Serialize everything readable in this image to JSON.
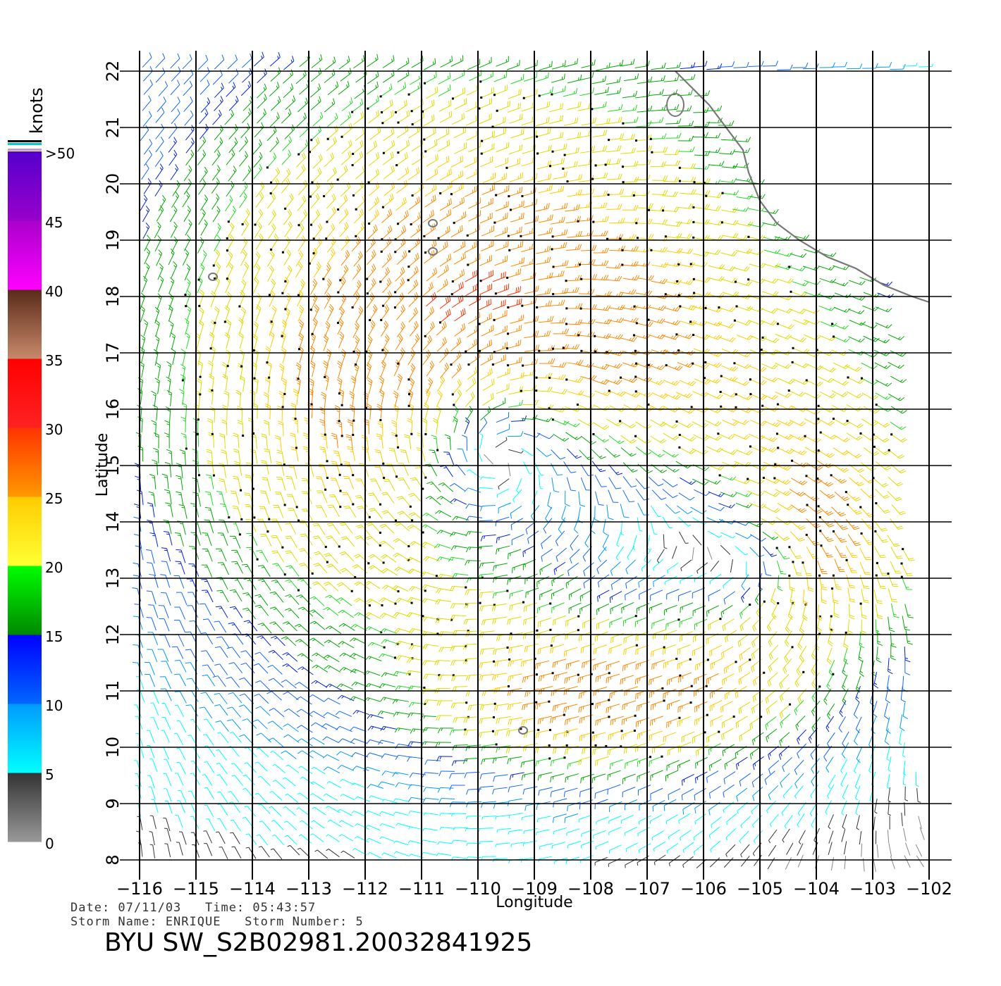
{
  "map": {
    "type": "scatterometer-wind-barbs",
    "lon_range": [
      -116,
      -102
    ],
    "lat_range": [
      8,
      22
    ],
    "x_label": "Longitude",
    "y_label": "Latitude",
    "lon_ticks": [
      -116,
      -115,
      -114,
      -113,
      -112,
      -111,
      -110,
      -109,
      -108,
      -107,
      -106,
      -105,
      -104,
      -103,
      -102
    ],
    "lat_ticks": [
      8,
      9,
      10,
      11,
      12,
      13,
      14,
      15,
      16,
      17,
      18,
      19,
      20,
      21,
      22
    ],
    "storm_center": {
      "lon": -109.8,
      "lat": 15.4
    },
    "secondary_center": {
      "lon": -104.9,
      "lat": 13.3
    },
    "coastline": [
      [
        -106.5,
        22.0
      ],
      [
        -106.2,
        21.7
      ],
      [
        -105.9,
        21.4
      ],
      [
        -105.6,
        21.0
      ],
      [
        -105.3,
        20.6
      ],
      [
        -105.2,
        20.2
      ],
      [
        -105.0,
        19.7
      ],
      [
        -104.7,
        19.3
      ],
      [
        -104.3,
        19.0
      ],
      [
        -103.8,
        18.7
      ],
      [
        -103.3,
        18.5
      ],
      [
        -102.8,
        18.2
      ],
      [
        -102.3,
        18.0
      ],
      [
        -102.0,
        17.9
      ]
    ],
    "islands": [
      {
        "name": "Socorro",
        "lon": -110.8,
        "lat": 18.8
      },
      {
        "name": "San Benedicto",
        "lon": -110.8,
        "lat": 19.3
      },
      {
        "name": "Clarion",
        "lon": -114.7,
        "lat": 18.35
      },
      {
        "name": "Clipperton",
        "lon": -109.2,
        "lat": 10.3
      },
      {
        "name": "Islas Marias",
        "lon": -106.5,
        "lat": 21.4
      }
    ],
    "swath_east_edge": [
      [
        -103.0,
        22.0
      ],
      [
        -102.6,
        16.0
      ],
      [
        -102.2,
        9.0
      ],
      [
        -102.0,
        8.0
      ]
    ]
  },
  "legend": {
    "unit": "knots",
    "labels": [
      ">50",
      "45",
      "40",
      "35",
      "30",
      "25",
      "20",
      "15",
      "10",
      "5",
      "0"
    ],
    "bands": [
      {
        "from": 0,
        "to": 5,
        "top": "#333333",
        "bottom": "#999999"
      },
      {
        "from": 5,
        "to": 10,
        "top": "#0099ff",
        "bottom": "#00ffff"
      },
      {
        "from": 10,
        "to": 15,
        "top": "#0000ff",
        "bottom": "#0066ff"
      },
      {
        "from": 15,
        "to": 20,
        "top": "#00ff00",
        "bottom": "#008800"
      },
      {
        "from": 20,
        "to": 25,
        "top": "#ffcc00",
        "bottom": "#ffff33"
      },
      {
        "from": 25,
        "to": 30,
        "top": "#ff3300",
        "bottom": "#ff9900"
      },
      {
        "from": 30,
        "to": 35,
        "top": "#ff0000",
        "bottom": "#ff2222"
      },
      {
        "from": 35,
        "to": 40,
        "top": "#5a2a1a",
        "bottom": "#c8896a"
      },
      {
        "from": 40,
        "to": 45,
        "top": "#aa00cc",
        "bottom": "#ff00ff"
      },
      {
        "from": 45,
        "to": 50,
        "top": "#5500cc",
        "bottom": "#9900cc"
      }
    ]
  },
  "footer": {
    "line1": "Date: 07/11/03   Time: 05:43:57",
    "line2": "Storm Name: ENRIQUE   Storm Number: 5",
    "product": "BYU SW_S2B02981.20032841925"
  }
}
